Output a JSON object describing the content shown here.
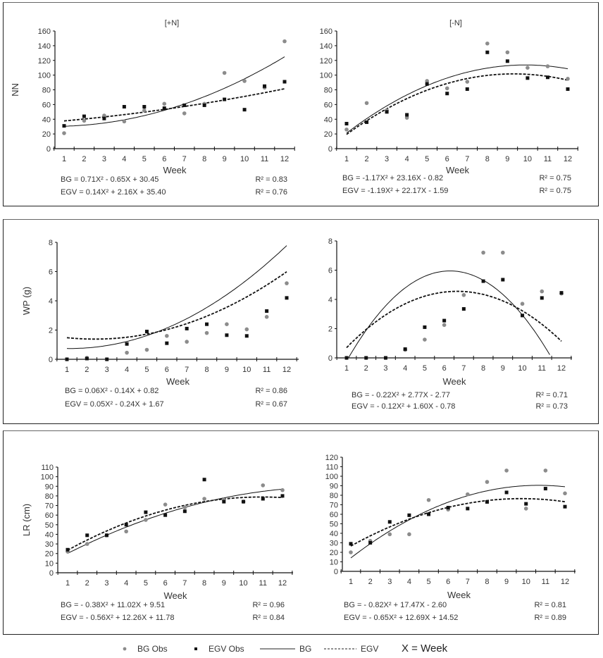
{
  "chart_data": [
    {
      "type": "scatter",
      "title": "[+N]",
      "xlabel": "Week",
      "ylabel": "NN",
      "x": [
        1,
        2,
        3,
        4,
        5,
        6,
        7,
        8,
        9,
        10,
        11,
        12
      ],
      "xticks": [
        "1",
        "2",
        "3",
        "4",
        "5",
        "6",
        "7",
        "8",
        "9",
        "10",
        "11",
        "12"
      ],
      "ylim": [
        0,
        160
      ],
      "yticks": [
        0,
        20,
        40,
        60,
        80,
        100,
        120,
        140,
        160
      ],
      "series": [
        {
          "name": "BG Obs",
          "kind": "points",
          "marker": "circle",
          "values": [
            21,
            38,
            45,
            37,
            52,
            61,
            48,
            61,
            103,
            92,
            83,
            146
          ]
        },
        {
          "name": "EGV Obs",
          "kind": "points",
          "marker": "square",
          "values": [
            31,
            44,
            41,
            57,
            57,
            55,
            59,
            59,
            67,
            53,
            85,
            91
          ]
        },
        {
          "name": "BG",
          "kind": "fit",
          "style": "solid",
          "coef": [
            0.71,
            -0.65,
            30.45
          ]
        },
        {
          "name": "EGV",
          "kind": "fit",
          "style": "dashed",
          "coef": [
            0.14,
            2.16,
            35.4
          ]
        }
      ],
      "equations": [
        {
          "text": "BG = 0.71X² - 0.65X + 30.45",
          "r2": "R² = 0.83"
        },
        {
          "text": "EGV = 0.14X² + 2.16X + 35.40",
          "r2": "R² = 0.76"
        }
      ]
    },
    {
      "type": "scatter",
      "title": "[-N]",
      "xlabel": "Week",
      "ylabel": "",
      "x": [
        1,
        2,
        3,
        4,
        5,
        6,
        7,
        8,
        9,
        10,
        11,
        12
      ],
      "xticks": [
        "1",
        "2",
        "3",
        "4",
        "5",
        "6",
        "7",
        "8",
        "9",
        "10",
        "11",
        "12"
      ],
      "ylim": [
        0,
        160
      ],
      "yticks": [
        0,
        20,
        40,
        60,
        80,
        100,
        120,
        140,
        160
      ],
      "series": [
        {
          "name": "BG Obs",
          "kind": "points",
          "marker": "circle",
          "values": [
            26,
            62,
            52,
            42,
            92,
            82,
            91,
            143,
            131,
            110,
            112,
            95
          ]
        },
        {
          "name": "EGV Obs",
          "kind": "points",
          "marker": "square",
          "values": [
            34,
            36,
            50,
            46,
            88,
            75,
            81,
            131,
            119,
            96,
            97,
            81
          ]
        },
        {
          "name": "BG",
          "kind": "fit",
          "style": "solid",
          "coef": [
            -1.17,
            23.16,
            -0.82
          ]
        },
        {
          "name": "EGV",
          "kind": "fit",
          "style": "dashed",
          "coef": [
            -1.19,
            22.17,
            -1.59
          ]
        }
      ],
      "equations": [
        {
          "text": "BG = -1.17X² + 23.16X - 0.82",
          "r2": "R² = 0.75"
        },
        {
          "text": "EGV = -1.19X² + 22.17X - 1.59",
          "r2": "R² = 0.75"
        }
      ]
    },
    {
      "type": "scatter",
      "title": "",
      "xlabel": "Week",
      "ylabel": "WP (g)",
      "x": [
        1,
        2,
        3,
        4,
        5,
        6,
        7,
        8,
        9,
        10,
        11,
        12
      ],
      "xticks": [
        "1",
        "2",
        "3",
        "4",
        "5",
        "6",
        "7",
        "8",
        "9",
        "10",
        "11",
        "12"
      ],
      "ylim": [
        0,
        8
      ],
      "yticks": [
        0,
        2,
        4,
        6,
        8
      ],
      "series": [
        {
          "name": "BG Obs",
          "kind": "points",
          "marker": "circle",
          "values": [
            0,
            0.1,
            0,
            0.45,
            0.65,
            1.6,
            1.2,
            1.8,
            2.4,
            2.05,
            2.9,
            5.2
          ]
        },
        {
          "name": "EGV Obs",
          "kind": "points",
          "marker": "square",
          "values": [
            0,
            0.05,
            0,
            1.05,
            1.9,
            1.1,
            2.1,
            2.4,
            1.65,
            1.6,
            3.3,
            4.2
          ]
        },
        {
          "name": "BG",
          "kind": "fit",
          "style": "solid",
          "coef": [
            0.06,
            -0.14,
            0.82
          ]
        },
        {
          "name": "EGV",
          "kind": "fit",
          "style": "dashed",
          "coef": [
            0.05,
            -0.24,
            1.67
          ]
        }
      ],
      "equations": [
        {
          "text": "BG = 0.06X² - 0.14X + 0.82",
          "r2": "R² = 0.86"
        },
        {
          "text": "EGV = 0.05X² - 0.24X + 1.67",
          "r2": "R² = 0.67"
        }
      ]
    },
    {
      "type": "scatter",
      "title": "",
      "xlabel": "Week",
      "ylabel": "",
      "x": [
        1,
        2,
        3,
        4,
        5,
        6,
        7,
        8,
        9,
        10,
        11,
        12
      ],
      "xticks": [
        "1",
        "2",
        "3",
        "4",
        "5",
        "6",
        "7",
        "8",
        "9",
        "10",
        "11",
        "12"
      ],
      "ylim": [
        0,
        8
      ],
      "yticks": [
        0,
        2,
        4,
        6,
        8
      ],
      "series": [
        {
          "name": "BG Obs",
          "kind": "points",
          "marker": "circle",
          "values": [
            0,
            0,
            0,
            0.55,
            1.25,
            2.25,
            4.3,
            7.2,
            7.2,
            3.7,
            4.55,
            4.4
          ]
        },
        {
          "name": "EGV Obs",
          "kind": "points",
          "marker": "square",
          "values": [
            0,
            0,
            0,
            0.6,
            2.1,
            2.55,
            3.35,
            5.25,
            5.35,
            2.9,
            4.1,
            4.45
          ]
        },
        {
          "name": "BG",
          "kind": "fit",
          "style": "solid",
          "coef": [
            -0.22,
            2.77,
            -2.77
          ]
        },
        {
          "name": "EGV",
          "kind": "fit",
          "style": "dashed",
          "coef": [
            -0.12,
            1.6,
            -0.78
          ]
        }
      ],
      "equations": [
        {
          "text": "BG = - 0.22X² + 2.77X - 2.77",
          "r2": "R² = 0.71"
        },
        {
          "text": "EGV = - 0.12X² + 1.60X - 0.78",
          "r2": "R² = 0.73"
        }
      ]
    },
    {
      "type": "scatter",
      "title": "",
      "xlabel": "Week",
      "ylabel": "LR (cm)",
      "x": [
        1,
        2,
        3,
        4,
        5,
        6,
        7,
        8,
        9,
        10,
        11,
        12
      ],
      "xticks": [
        "1",
        "2",
        "3",
        "4",
        "5",
        "6",
        "7",
        "8",
        "9",
        "10",
        "11",
        "12"
      ],
      "ylim": [
        0,
        110
      ],
      "yticks": [
        0,
        10,
        20,
        30,
        40,
        50,
        60,
        70,
        80,
        90,
        100,
        110
      ],
      "series": [
        {
          "name": "BG Obs",
          "kind": "points",
          "marker": "circle",
          "values": [
            22,
            30,
            39,
            43,
            55,
            71,
            68,
            77,
            76,
            74,
            91,
            86
          ]
        },
        {
          "name": "EGV Obs",
          "kind": "points",
          "marker": "square",
          "values": [
            24,
            39,
            39,
            50,
            63,
            60,
            64,
            97,
            74,
            74,
            77,
            80
          ]
        },
        {
          "name": "BG",
          "kind": "fit",
          "style": "solid",
          "coef": [
            -0.38,
            11.02,
            9.51
          ]
        },
        {
          "name": "EGV",
          "kind": "fit",
          "style": "dashed",
          "coef": [
            -0.56,
            12.26,
            11.78
          ]
        }
      ],
      "equations": [
        {
          "text": "BG = - 0.38X² + 11.02X + 9.51",
          "r2": "R² = 0.96"
        },
        {
          "text": "EGV = - 0.56X² + 12.26X + 11.78",
          "r2": "R² = 0.84"
        }
      ]
    },
    {
      "type": "scatter",
      "title": "",
      "xlabel": "Week",
      "ylabel": "",
      "x": [
        1,
        2,
        3,
        4,
        5,
        6,
        7,
        8,
        9,
        10,
        11,
        12
      ],
      "xticks": [
        "1",
        "2",
        "3",
        "4",
        "5",
        "6",
        "7",
        "8",
        "9",
        "10",
        "11",
        "12"
      ],
      "ylim": [
        0,
        120
      ],
      "yticks": [
        0,
        10,
        20,
        30,
        40,
        50,
        60,
        70,
        80,
        90,
        100,
        110,
        120
      ],
      "series": [
        {
          "name": "BG Obs",
          "kind": "points",
          "marker": "circle",
          "values": [
            20,
            32,
            39,
            39,
            75,
            65,
            81,
            94,
            106,
            66,
            106,
            82
          ]
        },
        {
          "name": "EGV Obs",
          "kind": "points",
          "marker": "square",
          "values": [
            29,
            30,
            52,
            59,
            60,
            67,
            66,
            73,
            83,
            71,
            87,
            68
          ]
        },
        {
          "name": "BG",
          "kind": "fit",
          "style": "solid",
          "coef": [
            -0.82,
            17.47,
            -2.6
          ]
        },
        {
          "name": "EGV",
          "kind": "fit",
          "style": "dashed",
          "coef": [
            -0.65,
            12.69,
            14.52
          ]
        }
      ],
      "equations": [
        {
          "text": "BG = - 0.82X² + 17.47X - 2.60",
          "r2": "R² = 0.81"
        },
        {
          "text": "EGV = - 0.65X² + 12.69X + 14.52",
          "r2": "R² = 0.89"
        }
      ]
    }
  ],
  "legend": {
    "position": "bottom",
    "items": [
      {
        "label": "BG Obs",
        "symbol": "circle"
      },
      {
        "label": "EGV Obs",
        "symbol": "square"
      },
      {
        "label": "BG",
        "symbol": "solid-line"
      },
      {
        "label": "EGV",
        "symbol": "dashed-line"
      }
    ],
    "note": "X = Week"
  },
  "colors": {
    "bg_obs": "#8c8c8c",
    "egv_obs": "#111111",
    "line": "#111111",
    "axis": "#111111",
    "text": "#333333"
  }
}
